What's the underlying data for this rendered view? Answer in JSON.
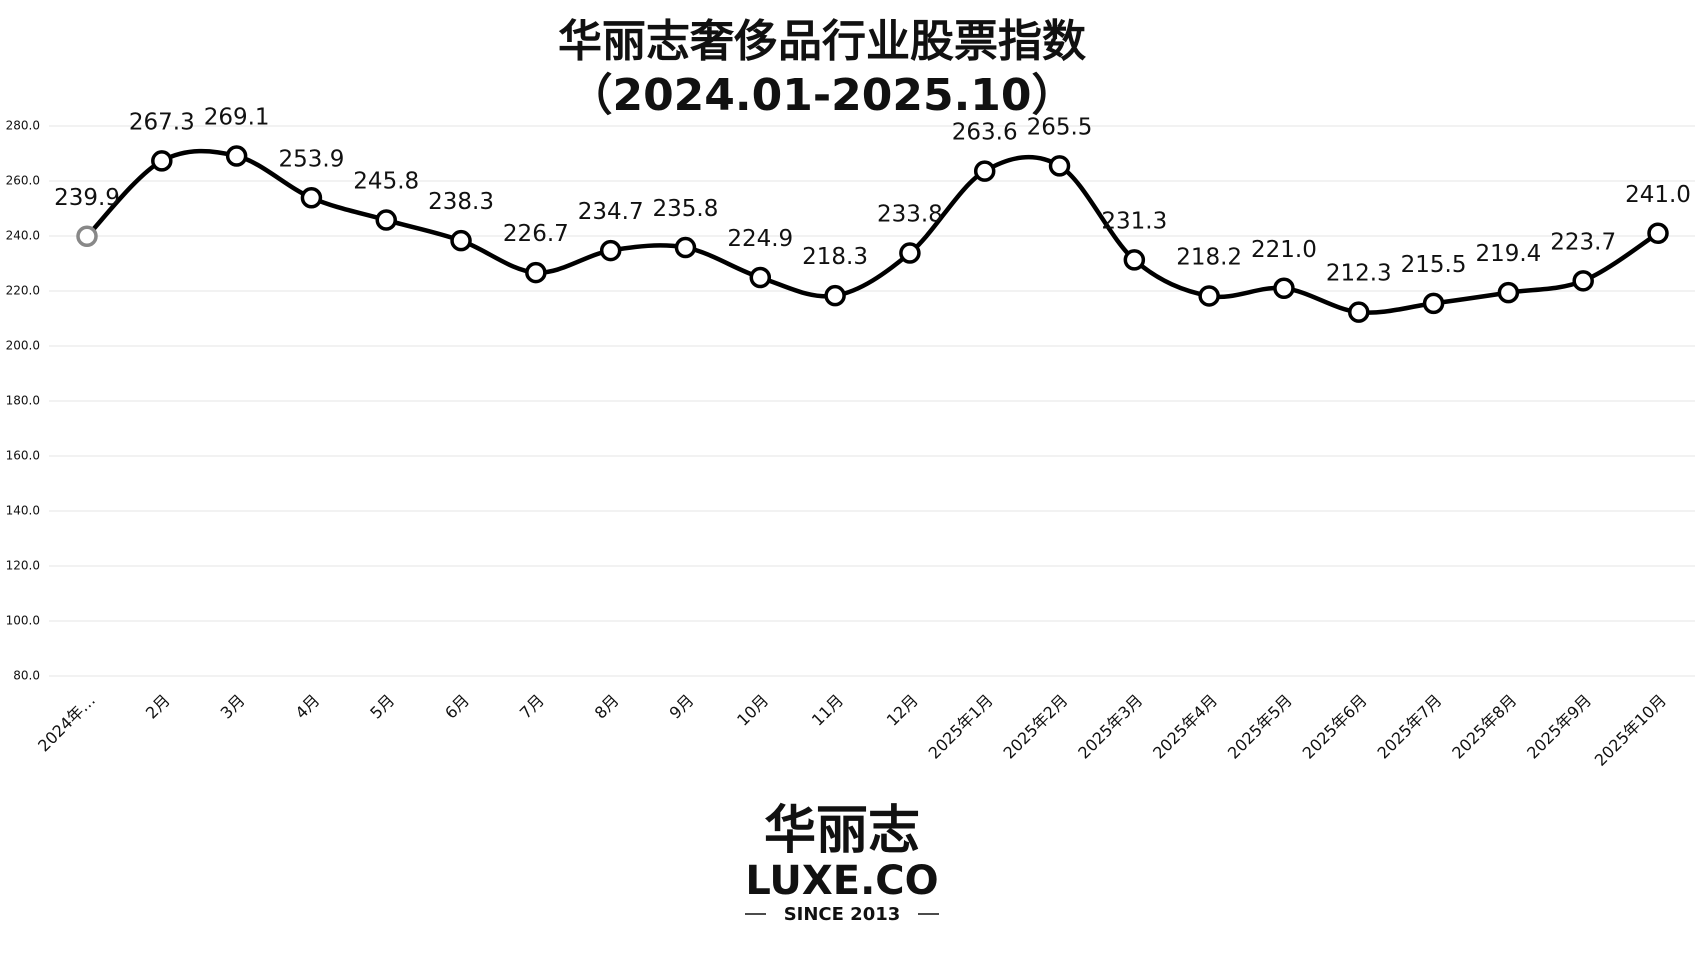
{
  "chart_data": {
    "type": "line",
    "title": "华丽志奢侈品行业股票指数",
    "subtitle": "（2024.01-2025.10）",
    "categories": [
      "2024年…",
      "2月",
      "3月",
      "4月",
      "5月",
      "6月",
      "7月",
      "8月",
      "9月",
      "10月",
      "11月",
      "12月",
      "2025年1月",
      "2025年2月",
      "2025年3月",
      "2025年4月",
      "2025年5月",
      "2025年6月",
      "2025年7月",
      "2025年8月",
      "2025年9月",
      "2025年10月"
    ],
    "values": [
      239.9,
      267.3,
      269.1,
      253.9,
      245.8,
      238.3,
      226.7,
      234.7,
      235.8,
      224.9,
      218.3,
      233.8,
      263.6,
      265.5,
      231.3,
      218.2,
      221.0,
      212.3,
      215.5,
      219.4,
      223.7,
      241.0
    ],
    "value_labels": [
      "239.9",
      "267.3",
      "269.1",
      "253.9",
      "245.8",
      "238.3",
      "226.7",
      "234.7",
      "235.8",
      "224.9",
      "218.3",
      "233.8",
      "263.6",
      "265.5",
      "231.3",
      "218.2",
      "221.0",
      "212.3",
      "215.5",
      "219.4",
      "223.7",
      "241.0"
    ],
    "color": "#000000",
    "first_marker_color": "#888888",
    "ylim": [
      80,
      280
    ],
    "yticks": [
      {
        "value": 80,
        "label": "80.0"
      },
      {
        "value": 100,
        "label": "100.0"
      },
      {
        "value": 120,
        "label": "120.0"
      },
      {
        "value": 140,
        "label": "140.0"
      },
      {
        "value": 160,
        "label": "160.0"
      },
      {
        "value": 180,
        "label": "180.0"
      },
      {
        "value": 200,
        "label": "200.0"
      },
      {
        "value": 220,
        "label": "220.0"
      },
      {
        "value": 240,
        "label": "240.0"
      },
      {
        "value": 260,
        "label": "260.0"
      },
      {
        "value": 280,
        "label": "280.0"
      }
    ],
    "grid": true
  },
  "logo": {
    "name": "华丽志",
    "brand": "LUXE.CO",
    "since": "SINCE 2013"
  }
}
